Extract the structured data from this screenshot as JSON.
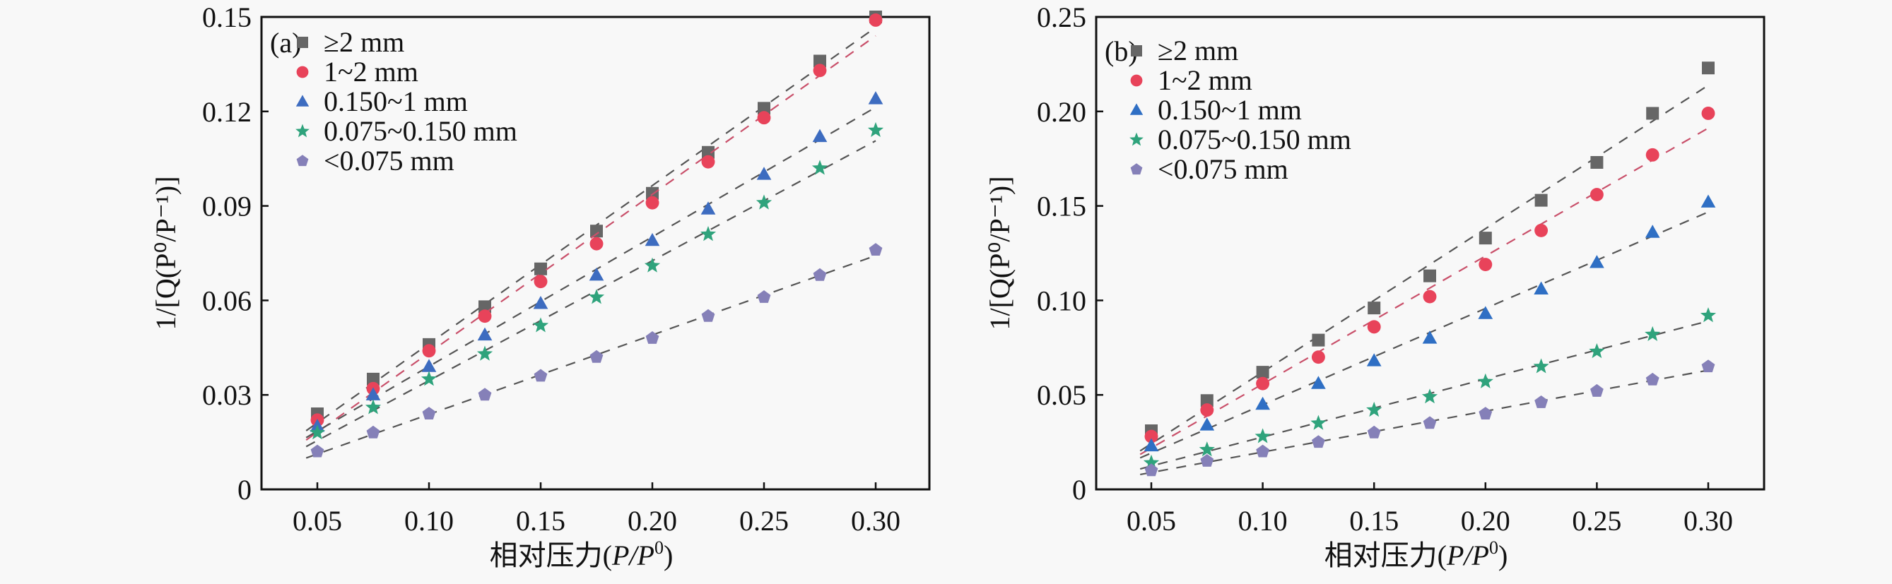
{
  "chart_data": [
    {
      "type": "scatter",
      "panel_label": "(a)",
      "xlabel_prefix": "相对压力(",
      "xlabel_var": "P/P",
      "xlabel_sup": "0",
      "xlabel_suffix": ")",
      "ylabel": "1/[Q(P⁰/P⁻¹)]",
      "xlim": [
        0.05,
        0.3
      ],
      "ylim": [
        0,
        0.15
      ],
      "xticks": [
        0.05,
        0.1,
        0.15,
        0.2,
        0.25,
        0.3
      ],
      "xtick_labels": [
        "0.05",
        "0.10",
        "0.15",
        "0.20",
        "0.25",
        "0.30"
      ],
      "yticks": [
        0,
        0.03,
        0.06,
        0.09,
        0.12,
        0.15
      ],
      "ytick_labels": [
        "0",
        "0.03",
        "0.06",
        "0.09",
        "0.12",
        "0.15"
      ],
      "legend_position": "top-left",
      "fit_lines": "dashed linear fits",
      "x": [
        0.05,
        0.075,
        0.1,
        0.125,
        0.15,
        0.175,
        0.2,
        0.225,
        0.25,
        0.275,
        0.3
      ],
      "series": [
        {
          "name": "≥2 mm",
          "marker": "square",
          "color": "#666666",
          "values": [
            0.024,
            0.035,
            0.046,
            0.058,
            0.07,
            0.082,
            0.094,
            0.107,
            0.121,
            0.136,
            0.15
          ]
        },
        {
          "name": "1~2 mm",
          "marker": "circle",
          "color": "#e8435a",
          "values": [
            0.022,
            0.032,
            0.044,
            0.055,
            0.066,
            0.078,
            0.091,
            0.104,
            0.118,
            0.133,
            0.149
          ]
        },
        {
          "name": "0.150~1 mm",
          "marker": "triangle",
          "color": "#3d6cc0",
          "values": [
            0.02,
            0.03,
            0.039,
            0.049,
            0.059,
            0.068,
            0.079,
            0.089,
            0.1,
            0.112,
            0.124
          ]
        },
        {
          "name": "0.075~0.150 mm",
          "marker": "star",
          "color": "#2fa37c",
          "values": [
            0.018,
            0.026,
            0.035,
            0.043,
            0.052,
            0.061,
            0.071,
            0.081,
            0.091,
            0.102,
            0.114
          ]
        },
        {
          "name": "<0.075 mm",
          "marker": "pentagon",
          "color": "#8580b8",
          "values": [
            0.012,
            0.018,
            0.024,
            0.03,
            0.036,
            0.042,
            0.048,
            0.055,
            0.061,
            0.068,
            0.076
          ]
        }
      ]
    },
    {
      "type": "scatter",
      "panel_label": "(b)",
      "xlabel_prefix": "相对压力(",
      "xlabel_var": "P/P",
      "xlabel_sup": "0",
      "xlabel_suffix": ")",
      "ylabel": "1/[Q(P⁰/P⁻¹)]",
      "xlim": [
        0.05,
        0.3
      ],
      "ylim": [
        0,
        0.25
      ],
      "xticks": [
        0.05,
        0.1,
        0.15,
        0.2,
        0.25,
        0.3
      ],
      "xtick_labels": [
        "0.05",
        "0.10",
        "0.15",
        "0.20",
        "0.25",
        "0.30"
      ],
      "yticks": [
        0,
        0.05,
        0.1,
        0.15,
        0.2,
        0.25
      ],
      "ytick_labels": [
        "0",
        "0.05",
        "0.10",
        "0.15",
        "0.20",
        "0.25"
      ],
      "legend_position": "top-left",
      "fit_lines": "dashed linear fits",
      "x": [
        0.05,
        0.075,
        0.1,
        0.125,
        0.15,
        0.175,
        0.2,
        0.225,
        0.25,
        0.275,
        0.3
      ],
      "series": [
        {
          "name": "≥2 mm",
          "marker": "square",
          "color": "#666666",
          "values": [
            0.031,
            0.047,
            0.062,
            0.079,
            0.096,
            0.113,
            0.133,
            0.153,
            0.173,
            0.199,
            0.223
          ]
        },
        {
          "name": "1~2 mm",
          "marker": "circle",
          "color": "#e8435a",
          "values": [
            0.028,
            0.042,
            0.056,
            0.07,
            0.086,
            0.102,
            0.119,
            0.137,
            0.156,
            0.177,
            0.199
          ]
        },
        {
          "name": "0.150~1 mm",
          "marker": "triangle",
          "color": "#2f6fc4",
          "values": [
            0.023,
            0.034,
            0.045,
            0.056,
            0.068,
            0.08,
            0.093,
            0.106,
            0.12,
            0.136,
            0.152
          ]
        },
        {
          "name": "0.075~0.150 mm",
          "marker": "star",
          "color": "#2fa37c",
          "values": [
            0.014,
            0.021,
            0.028,
            0.035,
            0.042,
            0.049,
            0.057,
            0.065,
            0.073,
            0.082,
            0.092
          ]
        },
        {
          "name": "<0.075 mm",
          "marker": "pentagon",
          "color": "#8580b8",
          "values": [
            0.01,
            0.015,
            0.02,
            0.025,
            0.03,
            0.035,
            0.04,
            0.046,
            0.052,
            0.058,
            0.065
          ]
        }
      ]
    }
  ]
}
